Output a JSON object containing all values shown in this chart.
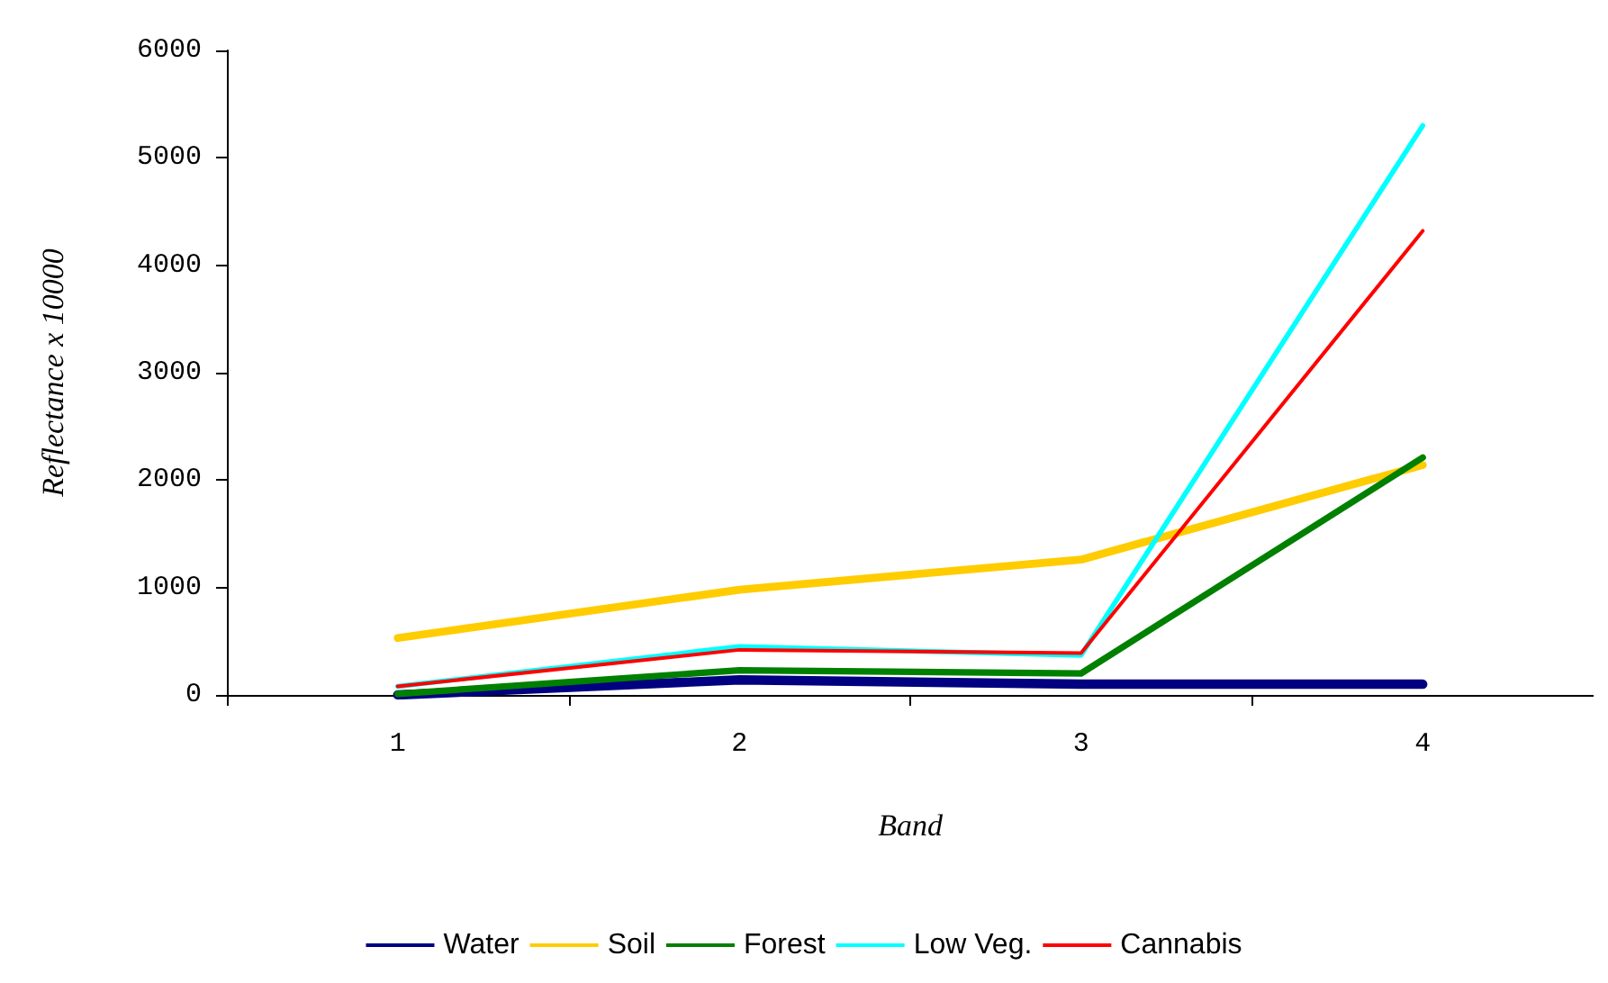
{
  "chart_data": {
    "type": "line",
    "xlabel": "Band",
    "ylabel": "Reflectance x 10000",
    "categories": [
      "1",
      "2",
      "3",
      "4"
    ],
    "ylim": [
      0,
      6000
    ],
    "yticks": [
      0,
      1000,
      2000,
      3000,
      4000,
      5000,
      6000
    ],
    "grid": false,
    "legend": "bottom",
    "marker": "none",
    "series": [
      {
        "name": "Water",
        "color": "#000080",
        "values": [
          0,
          140,
          100,
          100
        ]
      },
      {
        "name": "Soil",
        "color": "#ffcc00",
        "values": [
          530,
          980,
          1260,
          2140
        ]
      },
      {
        "name": "Forest",
        "color": "#008000",
        "values": [
          10,
          230,
          200,
          2210
        ]
      },
      {
        "name": "Low Veg.",
        "color": "#00ffff",
        "values": [
          80,
          450,
          370,
          5300
        ]
      },
      {
        "name": "Cannabis",
        "color": "#ff0000",
        "values": [
          80,
          420,
          390,
          4320
        ]
      }
    ]
  }
}
